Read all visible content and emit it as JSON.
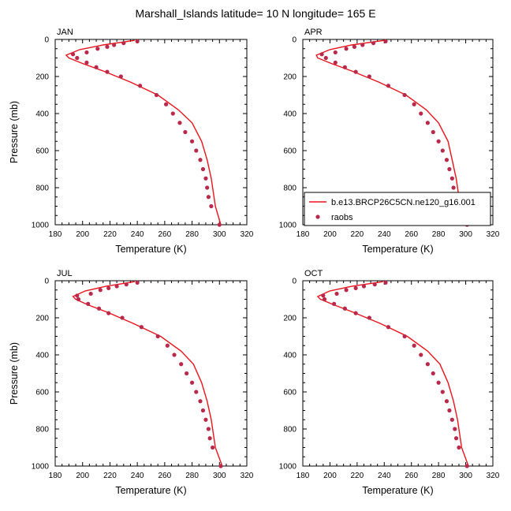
{
  "title": "Marshall_Islands  latitude= 10 N longitude= 165 E",
  "colors": {
    "model": "#e8141c",
    "obs": "#b8294b",
    "axis": "#000000"
  },
  "legend": {
    "model_label": "b.e13.BRCP26C5CN.ne120_g16.001",
    "obs_label": "raobs",
    "placement": "lower-right of APR panel"
  },
  "chart_data": [
    {
      "type": "line",
      "panel": "JAN",
      "xlabel": "Temperature (K)",
      "ylabel": "Pressure (mb)",
      "xlim": [
        180,
        320
      ],
      "ylim": [
        1000,
        0
      ],
      "xticks": [
        "180",
        "200",
        "220",
        "240",
        "260",
        "280",
        "300",
        "320"
      ],
      "yticks": [
        "0",
        "200",
        "400",
        "600",
        "800",
        "1000"
      ],
      "series": [
        {
          "name": "b.e13.BRCP26C5CN.ne120_g16.001",
          "kind": "line",
          "x": [
            238,
            215,
            198,
            188,
            190,
            200,
            215,
            235,
            255,
            270,
            280,
            287,
            291,
            294,
            297,
            301
          ],
          "y": [
            5,
            30,
            55,
            85,
            100,
            130,
            170,
            230,
            300,
            380,
            450,
            550,
            650,
            750,
            900,
            1000
          ]
        },
        {
          "name": "raobs",
          "kind": "scatter",
          "x": [
            240,
            230,
            223,
            218,
            211,
            203,
            193,
            196,
            203,
            210,
            218,
            228,
            242,
            254,
            261,
            266,
            271,
            275,
            280,
            283,
            286,
            288,
            290,
            291,
            292,
            294,
            300
          ],
          "y": [
            10,
            20,
            30,
            40,
            50,
            70,
            80,
            100,
            125,
            150,
            175,
            200,
            250,
            300,
            350,
            400,
            450,
            500,
            550,
            600,
            650,
            700,
            750,
            800,
            850,
            900,
            1000
          ]
        }
      ]
    },
    {
      "type": "line",
      "panel": "APR",
      "xlabel": "Temperature (K)",
      "ylabel": "",
      "xlim": [
        180,
        320
      ],
      "ylim": [
        1000,
        0
      ],
      "xticks": [
        "180",
        "200",
        "220",
        "240",
        "260",
        "280",
        "300",
        "320"
      ],
      "yticks": [
        "0",
        "200",
        "400",
        "600",
        "800",
        "1000"
      ],
      "series": [
        {
          "name": "b.e13.BRCP26C5CN.ne120_g16.001",
          "kind": "line",
          "x": [
            240,
            216,
            200,
            190,
            191,
            201,
            216,
            236,
            256,
            271,
            280,
            287,
            290,
            293,
            296,
            301
          ],
          "y": [
            5,
            30,
            55,
            85,
            100,
            130,
            170,
            230,
            300,
            380,
            450,
            550,
            650,
            750,
            900,
            1000
          ]
        },
        {
          "name": "raobs",
          "kind": "scatter",
          "x": [
            241,
            232,
            224,
            218,
            212,
            204,
            194,
            197,
            204,
            211,
            219,
            229,
            243,
            255,
            262,
            267,
            272,
            276,
            280,
            283,
            286,
            288,
            290,
            291,
            292,
            294,
            301
          ],
          "y": [
            10,
            20,
            30,
            40,
            50,
            70,
            80,
            100,
            125,
            150,
            175,
            200,
            250,
            300,
            350,
            400,
            450,
            500,
            550,
            600,
            650,
            700,
            750,
            800,
            850,
            900,
            1000
          ]
        }
      ]
    },
    {
      "type": "line",
      "panel": "JUL",
      "xlabel": "Temperature (K)",
      "ylabel": "Pressure (mb)",
      "xlim": [
        180,
        320
      ],
      "ylim": [
        1000,
        0
      ],
      "xticks": [
        "180",
        "200",
        "220",
        "240",
        "260",
        "280",
        "300",
        "320"
      ],
      "yticks": [
        "0",
        "200",
        "400",
        "600",
        "800",
        "1000"
      ],
      "series": [
        {
          "name": "b.e13.BRCP26C5CN.ne120_g16.001",
          "kind": "line",
          "x": [
            238,
            217,
            202,
            193,
            195,
            204,
            218,
            237,
            257,
            272,
            281,
            287,
            291,
            294,
            297,
            302
          ],
          "y": [
            5,
            30,
            55,
            85,
            100,
            130,
            170,
            230,
            300,
            380,
            450,
            550,
            650,
            750,
            900,
            1000
          ]
        },
        {
          "name": "raobs",
          "kind": "scatter",
          "x": [
            240,
            232,
            225,
            219,
            213,
            206,
            196,
            197,
            204,
            212,
            219,
            229,
            243,
            255,
            262,
            267,
            272,
            276,
            280,
            283,
            286,
            288,
            290,
            292,
            293,
            295,
            301
          ],
          "y": [
            10,
            20,
            30,
            40,
            50,
            70,
            80,
            100,
            125,
            150,
            175,
            200,
            250,
            300,
            350,
            400,
            450,
            500,
            550,
            600,
            650,
            700,
            750,
            800,
            850,
            900,
            1000
          ]
        }
      ]
    },
    {
      "type": "line",
      "panel": "OCT",
      "xlabel": "Temperature (K)",
      "ylabel": "",
      "xlim": [
        180,
        320
      ],
      "ylim": [
        1000,
        0
      ],
      "xticks": [
        "180",
        "200",
        "220",
        "240",
        "260",
        "280",
        "300",
        "320"
      ],
      "yticks": [
        "0",
        "200",
        "400",
        "600",
        "800",
        "1000"
      ],
      "series": [
        {
          "name": "b.e13.BRCP26C5CN.ne120_g16.001",
          "kind": "line",
          "x": [
            239,
            216,
            200,
            191,
            193,
            203,
            217,
            237,
            257,
            272,
            281,
            287,
            291,
            294,
            297,
            302
          ],
          "y": [
            5,
            30,
            55,
            85,
            100,
            130,
            170,
            230,
            300,
            380,
            450,
            550,
            650,
            750,
            900,
            1000
          ]
        },
        {
          "name": "raobs",
          "kind": "scatter",
          "x": [
            241,
            233,
            225,
            219,
            212,
            205,
            195,
            196,
            203,
            211,
            219,
            229,
            243,
            255,
            262,
            267,
            272,
            276,
            280,
            283,
            286,
            288,
            290,
            292,
            293,
            295,
            301
          ],
          "y": [
            10,
            20,
            30,
            40,
            50,
            70,
            80,
            100,
            125,
            150,
            175,
            200,
            250,
            300,
            350,
            400,
            450,
            500,
            550,
            600,
            650,
            700,
            750,
            800,
            850,
            900,
            1000
          ]
        }
      ]
    }
  ]
}
